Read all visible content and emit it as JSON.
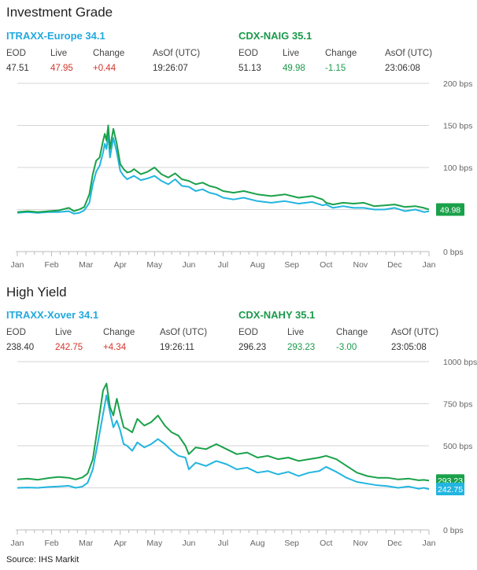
{
  "source": "Source: IHS  Markit",
  "colors": {
    "blue": "#22b5e0",
    "green": "#1aa14a",
    "red": "#d2352b",
    "grid": "#d6d6d6",
    "text": "#666666"
  },
  "panels": [
    {
      "title": "Investment Grade",
      "indices": [
        {
          "name": "ITRAXX-Europe 34.1",
          "color": "#22a9df",
          "headers": [
            "EOD",
            "Live",
            "Change",
            "AsOf (UTC)"
          ],
          "values": [
            "47.51",
            "47.95",
            "+0.44",
            "19:26:07"
          ]
        },
        {
          "name": "CDX-NAIG 35.1",
          "color": "#1a9a4a",
          "headers": [
            "EOD",
            "Live",
            "Change",
            "AsOf (UTC)"
          ],
          "values": [
            "51.13",
            "49.98",
            "-1.15",
            "23:06:08"
          ]
        }
      ],
      "last_labels": [
        {
          "text": "49.98",
          "color": "#1aa14a"
        }
      ]
    },
    {
      "title": "High Yield",
      "indices": [
        {
          "name": "ITRAXX-Xover 34.1",
          "color": "#22a9df",
          "headers": [
            "EOD",
            "Live",
            "Change",
            "AsOf (UTC)"
          ],
          "values": [
            "238.40",
            "242.75",
            "+4.34",
            "19:26:11"
          ]
        },
        {
          "name": "CDX-NAHY 35.1",
          "color": "#1a9a4a",
          "headers": [
            "EOD",
            "Live",
            "Change",
            "AsOf (UTC)"
          ],
          "values": [
            "296.23",
            "293.23",
            "-3.00",
            "23:05:08"
          ]
        }
      ],
      "last_labels": [
        {
          "text": "293.23",
          "color": "#1aa14a"
        },
        {
          "text": "242.75",
          "color": "#22b5e0"
        }
      ]
    }
  ],
  "chart_data": [
    {
      "type": "line",
      "months": [
        "Jan",
        "Feb",
        "Mar",
        "Apr",
        "May",
        "Jun",
        "Jul",
        "Aug",
        "Sep",
        "Oct",
        "Nov",
        "Dec",
        "Jan"
      ],
      "y_ticks": [
        0,
        50,
        100,
        150,
        200
      ],
      "y_tick_labels": [
        "0 bps",
        "",
        "100 bps",
        "150 bps",
        "200 bps"
      ],
      "ylim": [
        0,
        200
      ],
      "grid": true,
      "series": [
        {
          "name": "ITRAXX-Europe 34.1",
          "color": "#22b5e0",
          "x": [
            0,
            0.3,
            0.6,
            0.9,
            1.2,
            1.5,
            1.65,
            1.8,
            1.95,
            2.1,
            2.2,
            2.3,
            2.4,
            2.5,
            2.55,
            2.6,
            2.65,
            2.7,
            2.8,
            2.9,
            3.0,
            3.1,
            3.2,
            3.3,
            3.4,
            3.6,
            3.8,
            4.0,
            4.2,
            4.4,
            4.6,
            4.8,
            5.0,
            5.2,
            5.4,
            5.6,
            5.8,
            6.0,
            6.3,
            6.6,
            7.0,
            7.4,
            7.8,
            8.2,
            8.6,
            8.9,
            9.0,
            9.2,
            9.5,
            9.8,
            10.1,
            10.4,
            10.7,
            11.0,
            11.3,
            11.6,
            11.85,
            12.0
          ],
          "y": [
            46,
            47,
            46,
            47,
            47,
            48,
            45,
            46,
            49,
            58,
            80,
            95,
            102,
            118,
            128,
            122,
            140,
            112,
            135,
            118,
            96,
            90,
            86,
            88,
            90,
            85,
            87,
            90,
            84,
            80,
            86,
            78,
            77,
            72,
            74,
            70,
            68,
            64,
            62,
            64,
            60,
            58,
            60,
            57,
            59,
            55,
            56,
            52,
            54,
            52,
            52,
            50,
            50,
            52,
            48,
            50,
            47,
            47.95
          ]
        },
        {
          "name": "CDX-NAIG 35.1",
          "color": "#1aa14a",
          "x": [
            0,
            0.3,
            0.6,
            0.9,
            1.2,
            1.5,
            1.65,
            1.8,
            1.95,
            2.1,
            2.2,
            2.3,
            2.4,
            2.5,
            2.55,
            2.6,
            2.65,
            2.7,
            2.8,
            2.9,
            3.0,
            3.1,
            3.2,
            3.3,
            3.4,
            3.6,
            3.8,
            4.0,
            4.2,
            4.4,
            4.6,
            4.8,
            5.0,
            5.2,
            5.4,
            5.6,
            5.8,
            6.0,
            6.3,
            6.6,
            7.0,
            7.4,
            7.8,
            8.2,
            8.6,
            8.9,
            9.0,
            9.2,
            9.5,
            9.8,
            10.1,
            10.4,
            10.7,
            11.0,
            11.3,
            11.6,
            11.85,
            12.0
          ],
          "y": [
            47,
            48,
            47,
            48,
            49,
            52,
            48,
            50,
            53,
            68,
            92,
            108,
            112,
            132,
            140,
            132,
            150,
            122,
            146,
            128,
            104,
            98,
            94,
            95,
            98,
            92,
            95,
            100,
            92,
            88,
            93,
            86,
            84,
            80,
            82,
            78,
            76,
            72,
            70,
            72,
            68,
            66,
            68,
            64,
            66,
            62,
            58,
            56,
            58,
            57,
            58,
            54,
            55,
            56,
            53,
            54,
            52,
            49.98
          ]
        }
      ]
    },
    {
      "type": "line",
      "months": [
        "Jan",
        "Feb",
        "Mar",
        "Apr",
        "May",
        "Jun",
        "Jul",
        "Aug",
        "Sep",
        "Oct",
        "Nov",
        "Dec",
        "Jan"
      ],
      "y_ticks": [
        0,
        250,
        500,
        750,
        1000
      ],
      "y_tick_labels": [
        "0 bps",
        "",
        "500 bps",
        "750 bps",
        "1000 bps"
      ],
      "ylim": [
        0,
        1000
      ],
      "grid": true,
      "series": [
        {
          "name": "ITRAXX-Xover 34.1",
          "color": "#22b5e0",
          "x": [
            0,
            0.3,
            0.6,
            0.9,
            1.2,
            1.5,
            1.7,
            1.9,
            2.05,
            2.2,
            2.35,
            2.5,
            2.6,
            2.7,
            2.8,
            2.9,
            3.0,
            3.1,
            3.2,
            3.35,
            3.5,
            3.7,
            3.9,
            4.1,
            4.3,
            4.5,
            4.7,
            4.9,
            5.0,
            5.2,
            5.5,
            5.8,
            6.1,
            6.4,
            6.7,
            7.0,
            7.3,
            7.6,
            7.9,
            8.2,
            8.5,
            8.8,
            9.0,
            9.3,
            9.6,
            9.9,
            10.2,
            10.5,
            10.8,
            11.1,
            11.4,
            11.7,
            11.85,
            12.0
          ],
          "y": [
            250,
            252,
            250,
            255,
            258,
            262,
            250,
            258,
            280,
            360,
            520,
            690,
            800,
            700,
            610,
            650,
            590,
            510,
            500,
            470,
            520,
            490,
            510,
            540,
            510,
            470,
            440,
            430,
            360,
            400,
            380,
            410,
            390,
            360,
            370,
            340,
            350,
            330,
            345,
            320,
            340,
            350,
            375,
            345,
            310,
            285,
            275,
            265,
            260,
            250,
            258,
            245,
            250,
            242.75
          ]
        },
        {
          "name": "CDX-NAHY 35.1",
          "color": "#1aa14a",
          "x": [
            0,
            0.3,
            0.6,
            0.9,
            1.2,
            1.5,
            1.7,
            1.9,
            2.05,
            2.2,
            2.35,
            2.5,
            2.6,
            2.7,
            2.8,
            2.9,
            3.0,
            3.1,
            3.2,
            3.35,
            3.5,
            3.7,
            3.9,
            4.1,
            4.3,
            4.5,
            4.7,
            4.9,
            5.0,
            5.2,
            5.5,
            5.8,
            6.1,
            6.4,
            6.7,
            7.0,
            7.3,
            7.6,
            7.9,
            8.2,
            8.5,
            8.8,
            9.0,
            9.3,
            9.6,
            9.9,
            10.2,
            10.5,
            10.8,
            11.1,
            11.4,
            11.7,
            11.85,
            12.0
          ],
          "y": [
            300,
            305,
            298,
            308,
            315,
            310,
            300,
            312,
            335,
            420,
            620,
            830,
            870,
            730,
            680,
            780,
            690,
            610,
            600,
            580,
            660,
            620,
            640,
            680,
            620,
            580,
            560,
            500,
            450,
            490,
            480,
            510,
            480,
            450,
            460,
            430,
            440,
            420,
            430,
            410,
            420,
            430,
            440,
            420,
            380,
            340,
            320,
            310,
            310,
            300,
            305,
            295,
            297,
            293.23
          ]
        }
      ]
    }
  ]
}
